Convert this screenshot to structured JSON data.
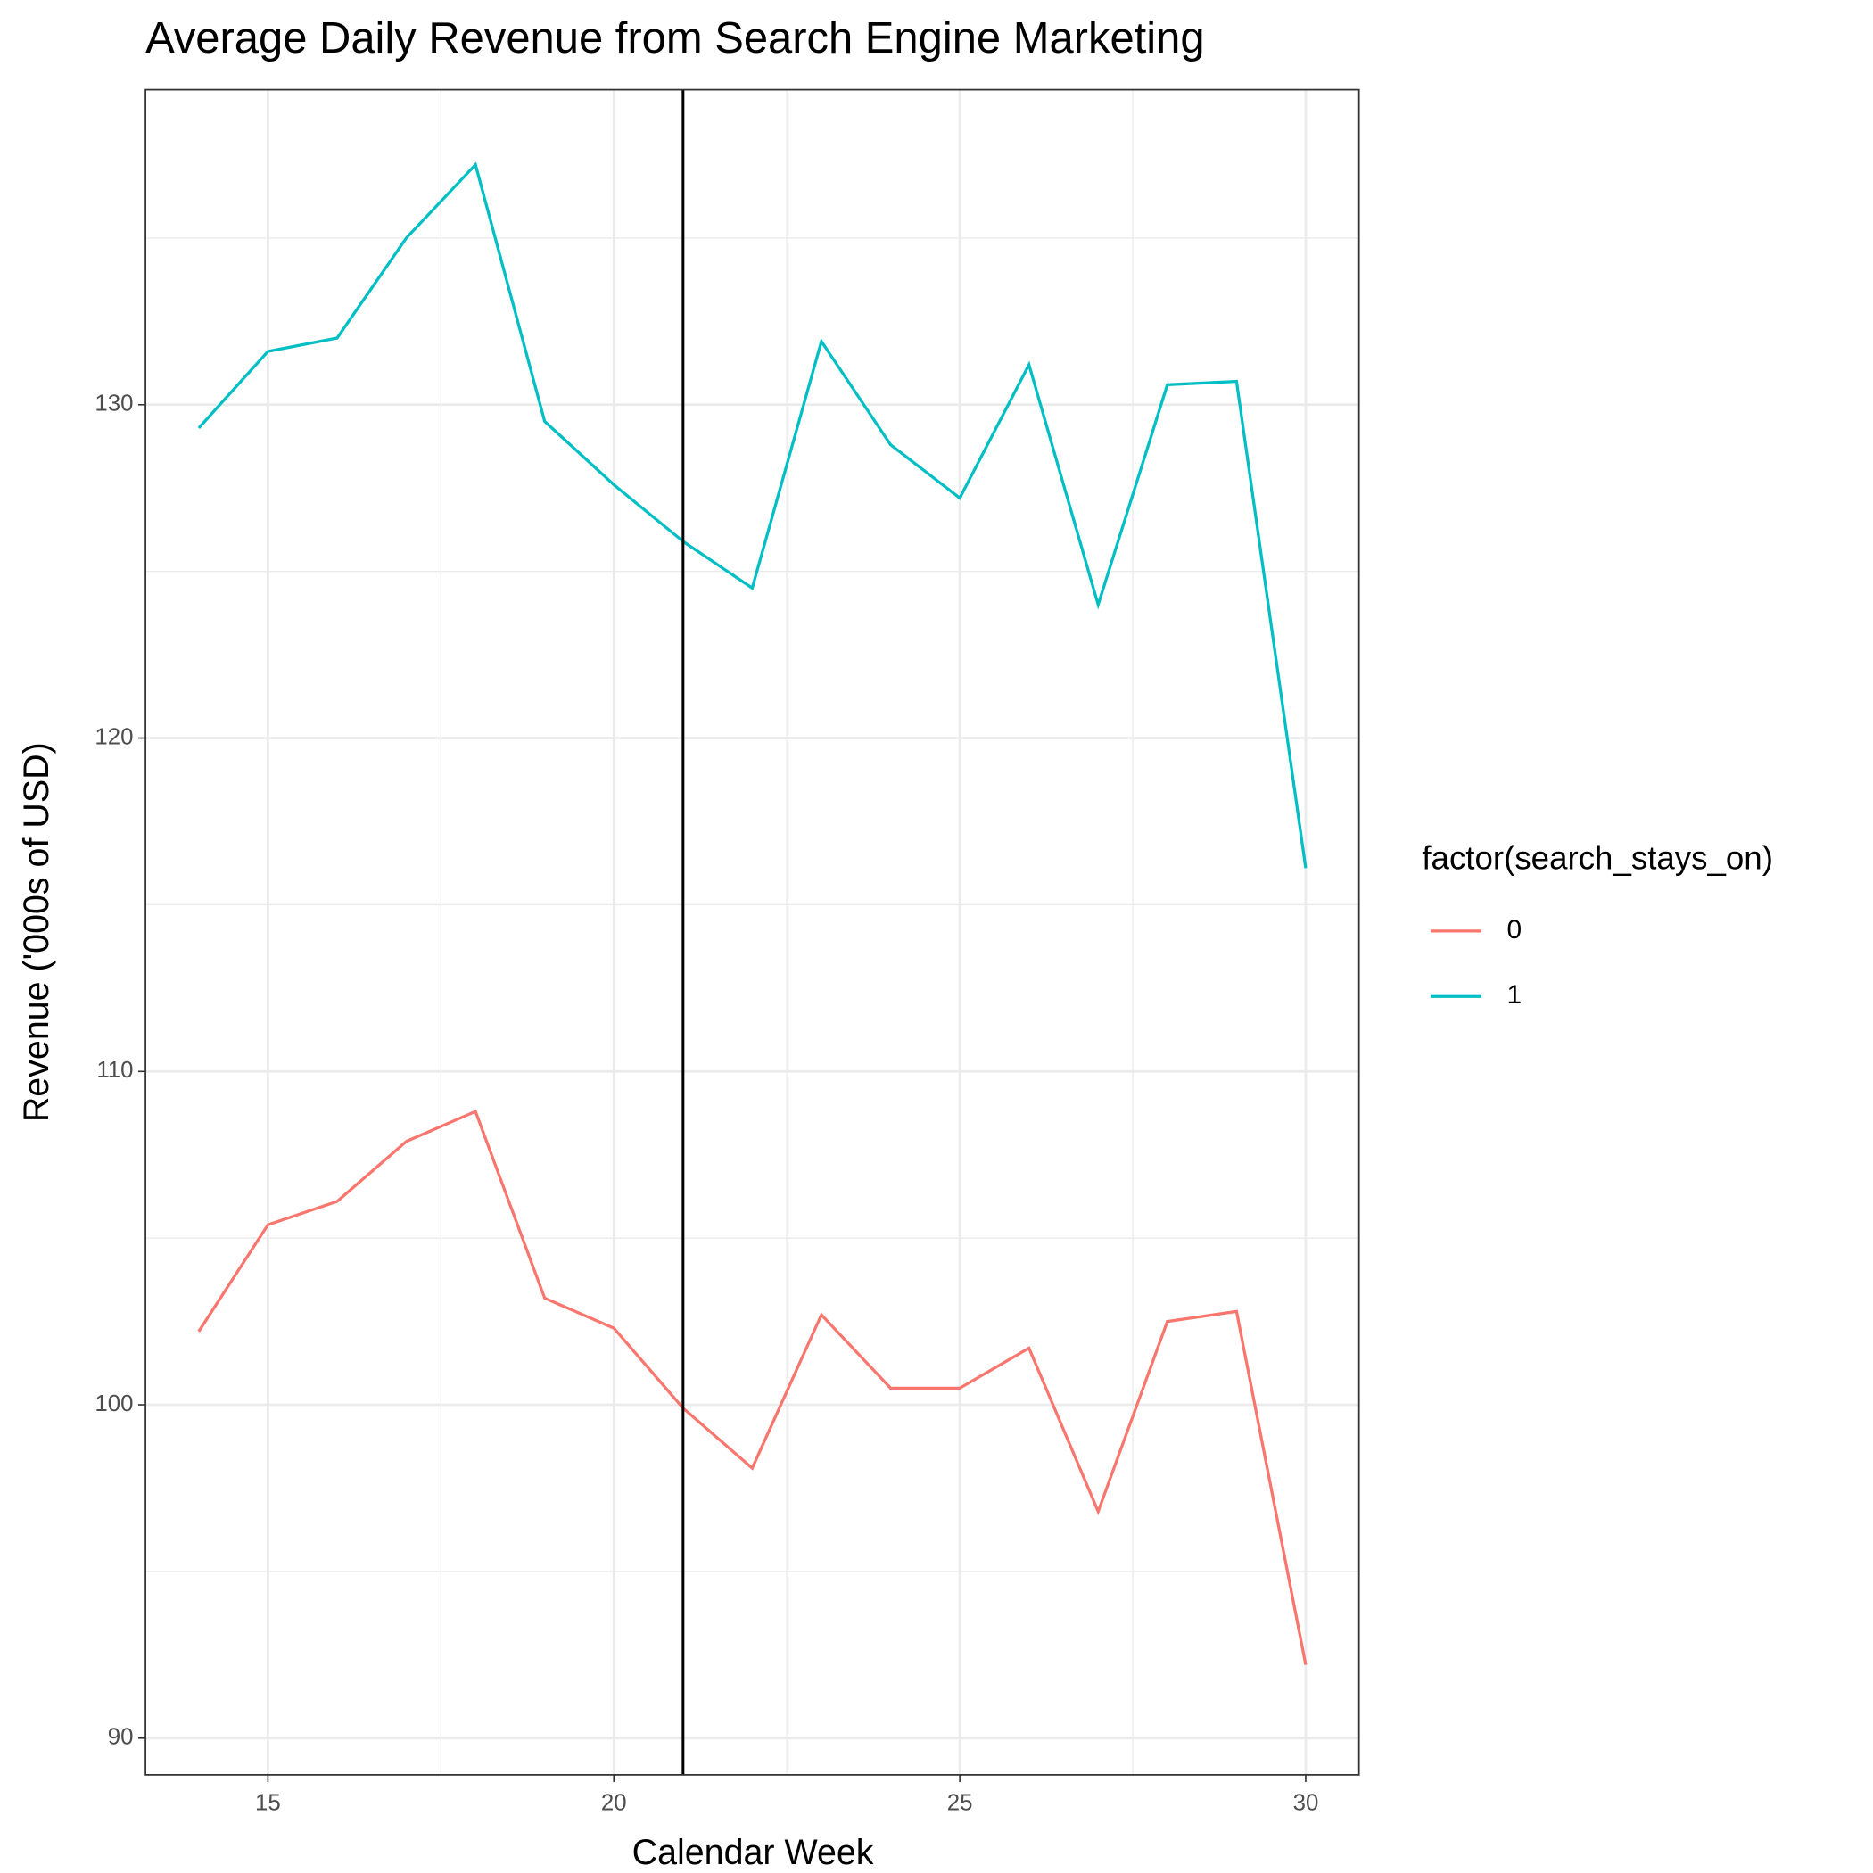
{
  "chart_data": {
    "type": "line",
    "title": "Average Daily Revenue from Search Engine Marketing",
    "x_label": "Calendar Week",
    "y_label": "Revenue ('000s of USD)",
    "legend_title": "factor(search_stays_on)",
    "x": [
      14,
      15,
      16,
      17,
      18,
      19,
      20,
      21,
      22,
      23,
      24,
      25,
      26,
      27,
      28,
      29,
      30
    ],
    "series": [
      {
        "name": "0",
        "color": "#f8766d",
        "values": [
          102.2,
          105.4,
          106.1,
          107.9,
          108.8,
          103.2,
          102.3,
          99.9,
          98.1,
          102.7,
          100.5,
          100.5,
          101.7,
          96.8,
          102.5,
          102.8,
          92.2
        ]
      },
      {
        "name": "1",
        "color": "#00bfc4",
        "values": [
          129.3,
          131.6,
          132.0,
          135.0,
          137.2,
          129.5,
          127.6,
          125.9,
          124.5,
          131.9,
          128.8,
          127.2,
          131.2,
          124.0,
          130.6,
          130.7,
          116.1
        ]
      }
    ],
    "vline": 21,
    "xlim": [
      13.23,
      30.77
    ],
    "ylim": [
      88.9,
      139.45
    ],
    "xticks": [
      15,
      20,
      25,
      30
    ],
    "yticks": [
      90,
      100,
      110,
      120,
      130
    ],
    "x_minor_ticks": [
      17.5,
      22.5,
      27.5
    ],
    "y_minor_ticks": [
      95,
      105,
      115,
      125,
      135
    ],
    "grid": true,
    "legend_position": "right"
  }
}
